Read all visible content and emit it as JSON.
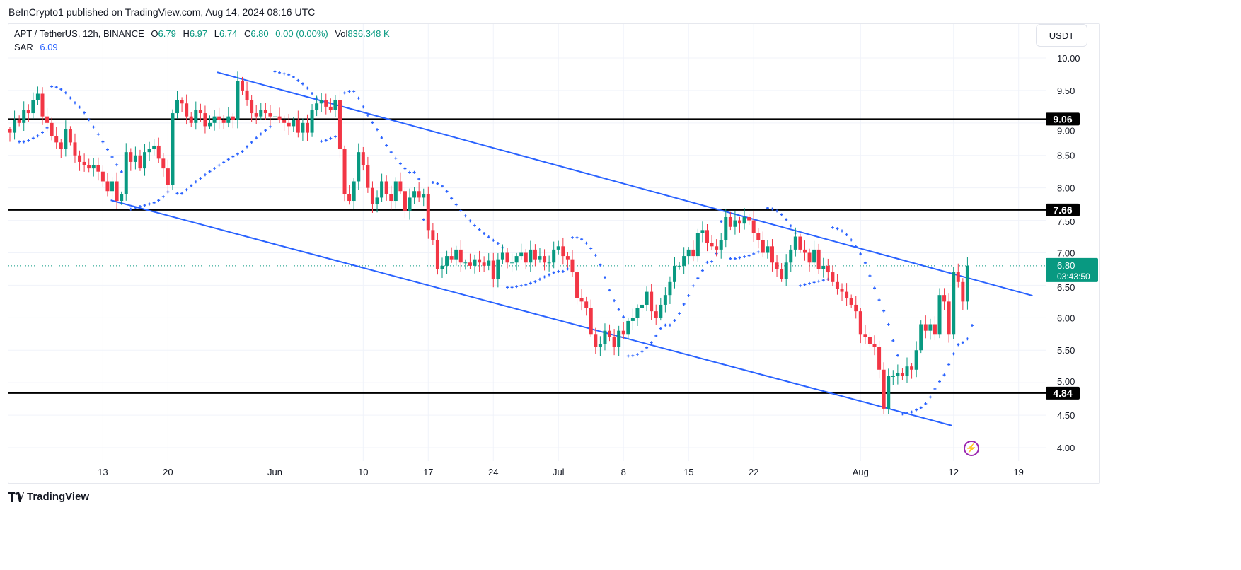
{
  "header": {
    "published": "BeInCrypto1 published on TradingView.com, Aug 14, 2024 08:16 UTC"
  },
  "legend": {
    "symbol": "APT / TetherUS, 12h, BINANCE",
    "o_label": "O",
    "o": "6.79",
    "h_label": "H",
    "h": "6.97",
    "l_label": "L",
    "l": "6.74",
    "c_label": "C",
    "c": "6.80",
    "change": "0.00 (0.00%)",
    "vol_label": "Vol",
    "vol": "836.348 K",
    "sar_label": "SAR",
    "sar": "6.09"
  },
  "currency_button": "USDT",
  "footer": {
    "logo_text": "TradingView"
  },
  "icons": {
    "alert": "lightning-icon",
    "logo": "tradingview-logo-icon"
  },
  "colors": {
    "up": "#089981",
    "down": "#f23645",
    "trend": "#2962ff",
    "sar": "#2962ff",
    "level": "#000000"
  },
  "chart_data": {
    "type": "candlestick",
    "title": "APT / TetherUS, 12h, BINANCE",
    "interval": "12h",
    "ylim": [
      4.0,
      10.0
    ],
    "y_ticks": [
      "10.00",
      "9.50",
      "9.00",
      "8.50",
      "8.00",
      "7.50",
      "7.00",
      "6.50",
      "6.00",
      "5.50",
      "5.00",
      "4.50",
      "4.00"
    ],
    "x_ticks": [
      {
        "label": "13",
        "index": 20
      },
      {
        "label": "20",
        "index": 34
      },
      {
        "label": "Jun",
        "index": 57
      },
      {
        "label": "10",
        "index": 76
      },
      {
        "label": "17",
        "index": 90
      },
      {
        "label": "24",
        "index": 104
      },
      {
        "label": "Jul",
        "index": 118
      },
      {
        "label": "8",
        "index": 132
      },
      {
        "label": "15",
        "index": 146
      },
      {
        "label": "22",
        "index": 160
      },
      {
        "label": "Aug",
        "index": 183
      },
      {
        "label": "12",
        "index": 203
      },
      {
        "label": "19",
        "index": 217
      }
    ],
    "close": [
      8.85,
      9.05,
      9.0,
      9.2,
      9.15,
      9.35,
      9.45,
      9.1,
      9.0,
      8.8,
      8.7,
      8.6,
      8.9,
      8.7,
      8.5,
      8.4,
      8.35,
      8.3,
      8.35,
      8.25,
      8.1,
      7.95,
      8.1,
      7.8,
      7.9,
      8.55,
      8.4,
      8.5,
      8.3,
      8.55,
      8.6,
      8.65,
      8.45,
      8.3,
      8.05,
      9.15,
      9.35,
      9.3,
      9.1,
      9.0,
      9.2,
      9.15,
      8.95,
      9.0,
      9.1,
      9.05,
      9.0,
      9.1,
      9.05,
      9.65,
      9.5,
      9.35,
      9.15,
      9.1,
      9.2,
      9.15,
      9.1,
      9.1,
      9.05,
      9.0,
      8.95,
      9.05,
      8.85,
      9.0,
      8.85,
      9.2,
      9.3,
      9.35,
      9.25,
      9.2,
      9.35,
      8.6,
      7.9,
      7.8,
      8.1,
      8.55,
      8.35,
      8.0,
      7.75,
      7.85,
      8.1,
      7.9,
      7.8,
      8.1,
      7.95,
      7.65,
      7.85,
      7.95,
      7.85,
      7.9,
      7.35,
      7.2,
      6.75,
      6.8,
      6.95,
      6.9,
      7.05,
      6.85,
      6.85,
      6.8,
      6.9,
      6.85,
      6.8,
      6.88,
      6.6,
      6.9,
      7.0,
      6.85,
      6.85,
      6.95,
      7.0,
      6.85,
      7.05,
      6.9,
      6.95,
      6.85,
      6.85,
      7.05,
      7.1,
      6.95,
      6.9,
      6.7,
      6.3,
      6.25,
      6.15,
      5.75,
      5.55,
      5.6,
      5.8,
      5.7,
      5.55,
      5.8,
      5.75,
      5.95,
      6.0,
      6.15,
      6.2,
      6.4,
      6.1,
      6.0,
      6.2,
      6.35,
      6.55,
      6.8,
      6.8,
      6.95,
      7.05,
      6.95,
      7.3,
      7.35,
      7.15,
      7.1,
      7.05,
      7.2,
      7.55,
      7.4,
      7.5,
      7.45,
      7.55,
      7.5,
      7.3,
      7.2,
      7.0,
      7.1,
      6.85,
      6.75,
      6.6,
      6.85,
      7.05,
      7.25,
      7.05,
      7.0,
      6.85,
      7.05,
      6.75,
      6.8,
      6.7,
      6.55,
      6.45,
      6.4,
      6.3,
      6.2,
      6.1,
      5.75,
      5.7,
      5.6,
      5.55,
      5.2,
      4.6,
      5.1,
      5.1,
      5.15,
      5.1,
      5.25,
      5.2,
      5.5,
      5.9,
      5.8,
      5.9,
      5.75,
      6.35,
      6.25,
      5.75,
      6.7,
      6.55,
      6.25,
      6.8
    ],
    "levels": [
      {
        "price": 9.06,
        "label": "9.06"
      },
      {
        "price": 7.66,
        "label": "7.66"
      },
      {
        "price": 4.84,
        "label": "4.84"
      }
    ],
    "trend_lines": [
      {
        "name": "upper-channel",
        "from": {
          "index": 44.6,
          "price": 9.78
        },
        "to": {
          "index": 220,
          "price": 6.34
        }
      },
      {
        "name": "lower-channel",
        "from": {
          "index": 21.7,
          "price": 7.81
        },
        "to": {
          "index": 202.6,
          "price": 4.34
        }
      }
    ],
    "last_price": {
      "price": 6.8,
      "label": "6.80",
      "countdown": "03:43:50"
    },
    "indicator": {
      "name": "Parabolic SAR",
      "value": 6.09
    }
  }
}
